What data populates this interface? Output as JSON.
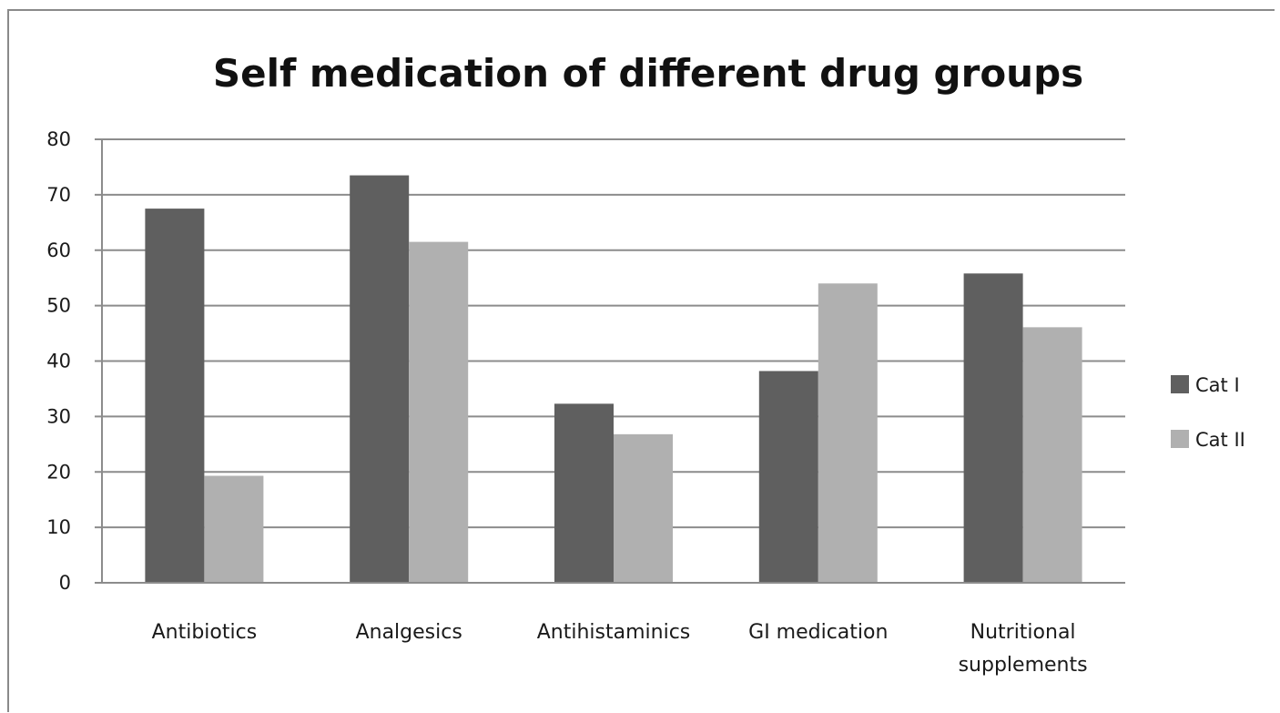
{
  "chart_data": {
    "type": "bar",
    "title": "Self medication of different drug groups",
    "xlabel": "",
    "ylabel": "",
    "ylim": [
      0,
      80
    ],
    "yticks": [
      0,
      10,
      20,
      30,
      40,
      50,
      60,
      70,
      80
    ],
    "grid": true,
    "legend_position": "right",
    "categories": [
      [
        "Antibiotics"
      ],
      [
        "Analgesics"
      ],
      [
        "Antihistaminics"
      ],
      [
        "GI medication"
      ],
      [
        "Nutritional",
        "supplements"
      ]
    ],
    "series": [
      {
        "name": "Cat I",
        "color": "#5f5f5f",
        "values": [
          67.5,
          73.5,
          32.3,
          38.2,
          55.8
        ]
      },
      {
        "name": "Cat II",
        "color": "#b0b0b0",
        "values": [
          19.3,
          61.5,
          26.8,
          54.0,
          46.1
        ]
      }
    ]
  }
}
